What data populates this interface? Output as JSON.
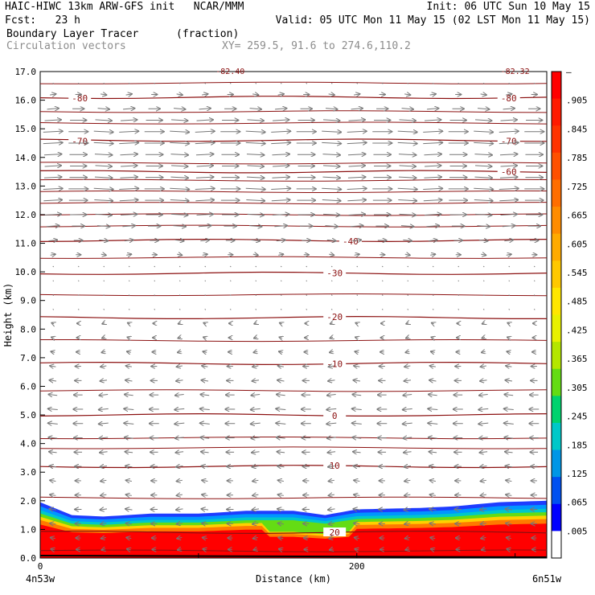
{
  "header": {
    "line1_left": "HAIC-HIWC 13km ARW-GFS init   NCAR/MMM",
    "line1_right": "Init: 06 UTC Sun 10 May 15",
    "line2_left": "Fcst:   23 h",
    "line2_right": "Valid: 05 UTC Mon 11 May 15 (02 LST Mon 11 May 15)",
    "field_name": "Boundary Layer Tracer",
    "field_units": "(fraction)",
    "vector_label": "Circulation vectors",
    "xy_label": "XY= 259.5, 91.6 to 274.6,110.2"
  },
  "chart_data": {
    "type": "cross-section",
    "xlabel": "Distance (km)",
    "ylabel": "Height (km)",
    "xlim": [
      0,
      320
    ],
    "ylim": [
      0,
      17
    ],
    "x_ticks": [
      "0",
      "200"
    ],
    "x_endpoints": [
      "4n53w",
      "6n51w"
    ],
    "y_ticks": [
      "0.0",
      "1.0",
      "2.0",
      "3.0",
      "4.0",
      "5.0",
      "6.0",
      "7.0",
      "8.0",
      "9.0",
      "10.0",
      "11.0",
      "12.0",
      "13.0",
      "14.0",
      "15.0",
      "16.0",
      "17.0"
    ],
    "colorbar_labels": [
      "–",
      ".905",
      ".845",
      ".785",
      ".725",
      ".665",
      ".605",
      ".545",
      ".485",
      ".425",
      ".365",
      ".305",
      ".245",
      ".185",
      ".125",
      ".065",
      ".005"
    ],
    "colorbar_colors": [
      "#ff0000",
      "#ff1a00",
      "#ff3300",
      "#ff5000",
      "#ff6e00",
      "#ff8c00",
      "#ffaa00",
      "#ffc800",
      "#ffe600",
      "#e8f000",
      "#b4e600",
      "#64dc14",
      "#00d26e",
      "#00c8c8",
      "#0096e6",
      "#0050f0",
      "#0000ff",
      "#ffffff"
    ],
    "temperature_contours": [
      {
        "label": "20",
        "height": 0.9
      },
      {
        "label": "10",
        "height": 3.2
      },
      {
        "label": "0",
        "height": 5.0
      },
      {
        "label": "-10",
        "height": 6.8
      },
      {
        "label": "-20",
        "height": 8.4
      },
      {
        "label": "-30",
        "height": 9.95
      },
      {
        "label": "-40",
        "height": 11.1
      },
      {
        "label": "-60",
        "height": 13.5
      },
      {
        "label": "-70",
        "height": 14.6
      },
      {
        "label": "-80",
        "height": 16.1
      }
    ],
    "extra_contour_heights": [
      0.25,
      2.1,
      3.85,
      4.2,
      5.85,
      7.6,
      9.2,
      10.5,
      11.6,
      12.0,
      12.4,
      12.8,
      13.2,
      13.8,
      15.2,
      15.6,
      16.6
    ],
    "top_labels": [
      "-82.40",
      "-82.32"
    ],
    "tracer_top_profile": [
      [
        0,
        1.95
      ],
      [
        20,
        1.5
      ],
      [
        40,
        1.45
      ],
      [
        70,
        1.55
      ],
      [
        100,
        1.55
      ],
      [
        130,
        1.65
      ],
      [
        160,
        1.65
      ],
      [
        180,
        1.5
      ],
      [
        200,
        1.7
      ],
      [
        240,
        1.75
      ],
      [
        260,
        1.8
      ],
      [
        290,
        1.95
      ],
      [
        320,
        2.0
      ]
    ],
    "wind_layers": [
      {
        "height": 16.6,
        "u": -0.1
      },
      {
        "height": 16.2,
        "u": 0.3
      },
      {
        "height": 15.7,
        "u": 0.6
      },
      {
        "height": 15.3,
        "u": 0.85
      },
      {
        "height": 14.9,
        "u": 1.0
      },
      {
        "height": 14.5,
        "u": 1.0
      },
      {
        "height": 14.1,
        "u": 0.9
      },
      {
        "height": 13.7,
        "u": 0.85
      },
      {
        "height": 13.3,
        "u": 0.9
      },
      {
        "height": 12.9,
        "u": 1.0
      },
      {
        "height": 12.5,
        "u": 0.95
      },
      {
        "height": 12.0,
        "u": 0.85
      },
      {
        "height": 11.6,
        "u": 0.65
      },
      {
        "height": 11.1,
        "u": 0.45
      },
      {
        "height": 10.6,
        "u": 0.25
      },
      {
        "height": 10.2,
        "u": 0.1
      },
      {
        "height": 9.7,
        "u": -0.05
      },
      {
        "height": 9.2,
        "u": -0.08
      },
      {
        "height": 8.7,
        "u": -0.1
      },
      {
        "height": 8.2,
        "u": -0.12
      },
      {
        "height": 7.7,
        "u": -0.15
      },
      {
        "height": 7.2,
        "u": -0.2
      },
      {
        "height": 6.7,
        "u": -0.3
      },
      {
        "height": 6.2,
        "u": -0.35
      },
      {
        "height": 5.7,
        "u": -0.45
      },
      {
        "height": 5.2,
        "u": -0.5
      },
      {
        "height": 4.7,
        "u": -0.5
      },
      {
        "height": 4.2,
        "u": -0.45
      },
      {
        "height": 3.7,
        "u": -0.4
      },
      {
        "height": 3.2,
        "u": -0.35
      },
      {
        "height": 2.7,
        "u": -0.3
      },
      {
        "height": 2.2,
        "u": -0.3
      },
      {
        "height": 1.7,
        "u": -0.35
      },
      {
        "height": 1.2,
        "u": -0.3
      },
      {
        "height": 0.7,
        "u": -0.25
      },
      {
        "height": 0.3,
        "u": -0.2
      }
    ]
  }
}
